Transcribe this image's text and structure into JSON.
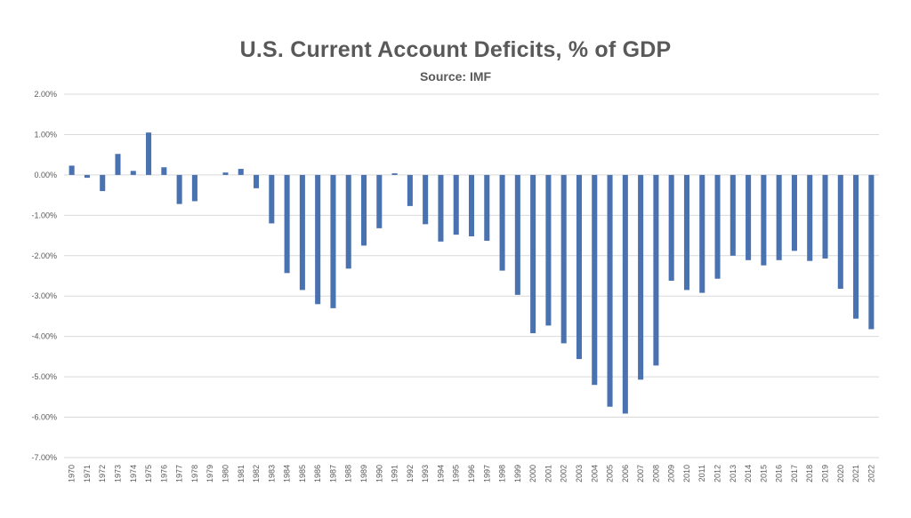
{
  "chart_data": {
    "type": "bar",
    "title": "U.S. Current Account Deficits, % of GDP",
    "subtitle": "Source: IMF",
    "xlabel": "",
    "ylabel": "",
    "ylim": [
      -7,
      2
    ],
    "y_ticks": [
      2,
      1,
      0,
      -1,
      -2,
      -3,
      -4,
      -5,
      -6,
      -7
    ],
    "y_tick_labels": [
      "2.00%",
      "1.00%",
      "0.00%",
      "-1.00%",
      "-2.00%",
      "-3.00%",
      "-4.00%",
      "-5.00%",
      "-6.00%",
      "-7.00%"
    ],
    "grid": true,
    "bar_color": "#4a72b0",
    "grid_color": "#d9d9d9",
    "categories": [
      "1970",
      "1971",
      "1972",
      "1973",
      "1974",
      "1975",
      "1976",
      "1977",
      "1978",
      "1979",
      "1980",
      "1981",
      "1982",
      "1983",
      "1984",
      "1985",
      "1986",
      "1987",
      "1988",
      "1989",
      "1990",
      "1991",
      "1992",
      "1993",
      "1994",
      "1995",
      "1996",
      "1997",
      "1998",
      "1999",
      "2000",
      "2001",
      "2002",
      "2003",
      "2004",
      "2005",
      "2006",
      "2007",
      "2008",
      "2009",
      "2010",
      "2011",
      "2012",
      "2013",
      "2014",
      "2015",
      "2016",
      "2017",
      "2018",
      "2019",
      "2020",
      "2021",
      "2022"
    ],
    "values": [
      0.23,
      -0.07,
      -0.4,
      0.52,
      0.1,
      1.05,
      0.19,
      -0.72,
      -0.65,
      0.0,
      0.06,
      0.15,
      -0.33,
      -1.2,
      -2.43,
      -2.85,
      -3.2,
      -3.3,
      -2.32,
      -1.75,
      -1.32,
      0.04,
      -0.77,
      -1.22,
      -1.65,
      -1.48,
      -1.52,
      -1.63,
      -2.37,
      -2.97,
      -3.92,
      -3.73,
      -4.17,
      -4.56,
      -5.2,
      -5.74,
      -5.91,
      -5.07,
      -4.72,
      -2.62,
      -2.85,
      -2.92,
      -2.57,
      -2.0,
      -2.11,
      -2.24,
      -2.11,
      -1.88,
      -2.13,
      -2.07,
      -2.82,
      -3.56,
      -3.82
    ]
  }
}
